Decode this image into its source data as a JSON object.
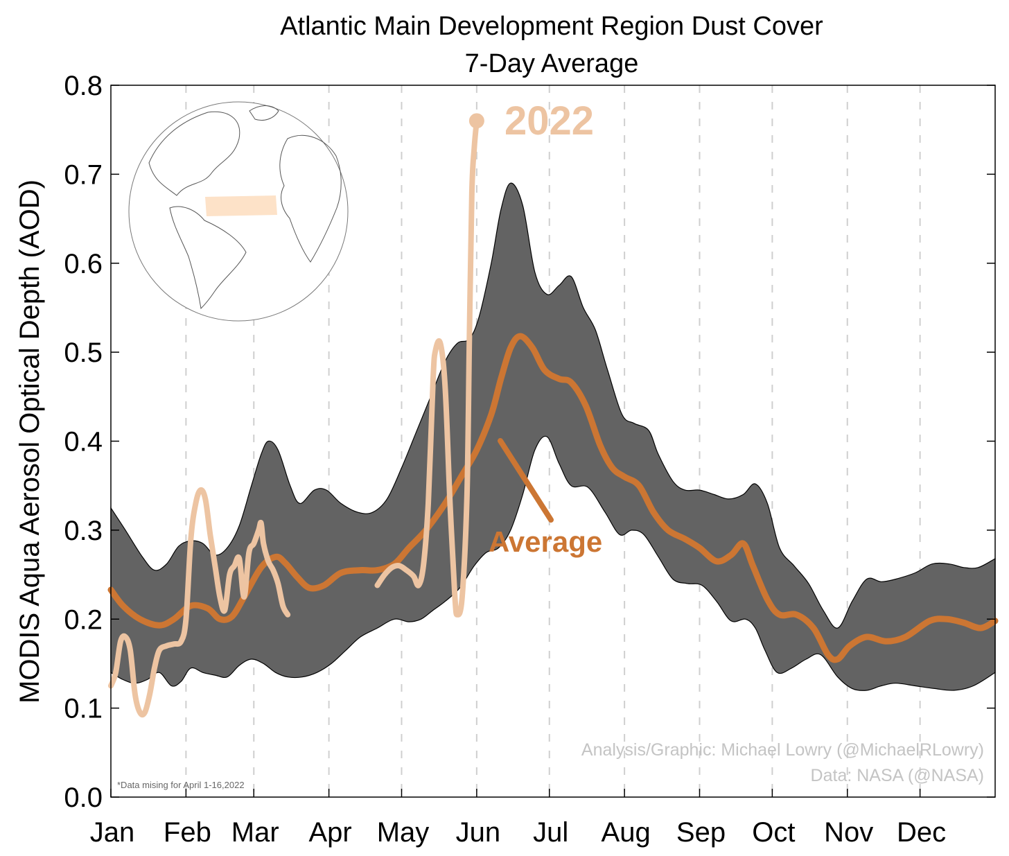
{
  "chart_data": {
    "type": "line",
    "title": "Atlantic Main Development Region Dust Cover",
    "subtitle": "7-Day Average",
    "ylabel": "MODIS Aqua Aerosol Optical Depth (AOD)",
    "xlabel": "",
    "ylim": [
      0,
      0.8
    ],
    "xlim": [
      0,
      365
    ],
    "yticks": [
      "0.0",
      "0.1",
      "0.2",
      "0.3",
      "0.4",
      "0.5",
      "0.6",
      "0.7",
      "0.8"
    ],
    "months": [
      {
        "label": "Jan",
        "day": 0
      },
      {
        "label": "Feb",
        "day": 31
      },
      {
        "label": "Mar",
        "day": 59
      },
      {
        "label": "Apr",
        "day": 90
      },
      {
        "label": "May",
        "day": 120
      },
      {
        "label": "Jun",
        "day": 151
      },
      {
        "label": "Jul",
        "day": 181
      },
      {
        "label": "Aug",
        "day": 212
      },
      {
        "label": "Sep",
        "day": 243
      },
      {
        "label": "Oct",
        "day": 273
      },
      {
        "label": "Nov",
        "day": 304
      },
      {
        "label": "Dec",
        "day": 334
      }
    ],
    "grid": "vertical dashed at month starts",
    "series": [
      {
        "name": "Average",
        "color": "#cc7633",
        "points": [
          [
            0,
            0.233
          ],
          [
            5,
            0.215
          ],
          [
            12,
            0.2
          ],
          [
            20,
            0.193
          ],
          [
            26,
            0.2
          ],
          [
            33,
            0.215
          ],
          [
            40,
            0.212
          ],
          [
            45,
            0.2
          ],
          [
            50,
            0.203
          ],
          [
            55,
            0.225
          ],
          [
            62,
            0.258
          ],
          [
            68,
            0.27
          ],
          [
            72,
            0.263
          ],
          [
            77,
            0.247
          ],
          [
            82,
            0.235
          ],
          [
            88,
            0.238
          ],
          [
            95,
            0.252
          ],
          [
            103,
            0.255
          ],
          [
            110,
            0.255
          ],
          [
            117,
            0.262
          ],
          [
            123,
            0.28
          ],
          [
            130,
            0.3
          ],
          [
            138,
            0.33
          ],
          [
            145,
            0.362
          ],
          [
            151,
            0.39
          ],
          [
            157,
            0.43
          ],
          [
            161,
            0.47
          ],
          [
            165,
            0.505
          ],
          [
            169,
            0.518
          ],
          [
            174,
            0.505
          ],
          [
            179,
            0.48
          ],
          [
            185,
            0.47
          ],
          [
            190,
            0.466
          ],
          [
            196,
            0.44
          ],
          [
            202,
            0.395
          ],
          [
            207,
            0.37
          ],
          [
            212,
            0.36
          ],
          [
            218,
            0.35
          ],
          [
            224,
            0.32
          ],
          [
            230,
            0.3
          ],
          [
            237,
            0.29
          ],
          [
            243,
            0.28
          ],
          [
            250,
            0.265
          ],
          [
            256,
            0.272
          ],
          [
            261,
            0.285
          ],
          [
            265,
            0.26
          ],
          [
            271,
            0.222
          ],
          [
            276,
            0.205
          ],
          [
            283,
            0.205
          ],
          [
            290,
            0.19
          ],
          [
            296,
            0.16
          ],
          [
            300,
            0.155
          ],
          [
            305,
            0.17
          ],
          [
            312,
            0.18
          ],
          [
            320,
            0.175
          ],
          [
            328,
            0.18
          ],
          [
            338,
            0.198
          ],
          [
            345,
            0.2
          ],
          [
            352,
            0.196
          ],
          [
            359,
            0.19
          ],
          [
            365,
            0.198
          ]
        ]
      },
      {
        "name": "2022",
        "color": "#edc4a2",
        "segments": [
          [
            [
              0,
              0.125
            ],
            [
              2,
              0.14
            ],
            [
              4,
              0.175
            ],
            [
              6,
              0.18
            ],
            [
              8,
              0.165
            ],
            [
              10,
              0.115
            ],
            [
              12,
              0.095
            ],
            [
              14,
              0.095
            ],
            [
              16,
              0.115
            ],
            [
              18,
              0.145
            ],
            [
              20,
              0.165
            ],
            [
              23,
              0.17
            ],
            [
              26,
              0.172
            ],
            [
              29,
              0.175
            ],
            [
              31,
              0.2
            ],
            [
              33,
              0.29
            ],
            [
              35,
              0.33
            ],
            [
              37,
              0.345
            ],
            [
              39,
              0.335
            ],
            [
              41,
              0.295
            ],
            [
              43,
              0.26
            ],
            [
              45,
              0.225
            ],
            [
              47,
              0.21
            ],
            [
              49,
              0.25
            ],
            [
              51,
              0.26
            ],
            [
              53,
              0.268
            ],
            [
              55,
              0.225
            ],
            [
              57,
              0.275
            ],
            [
              59,
              0.285
            ],
            [
              61,
              0.3
            ],
            [
              62,
              0.308
            ],
            [
              63,
              0.285
            ],
            [
              65,
              0.265
            ],
            [
              67,
              0.255
            ],
            [
              69,
              0.24
            ],
            [
              71,
              0.215
            ],
            [
              73,
              0.205
            ]
          ],
          [
            [
              110,
              0.238
            ],
            [
              113,
              0.25
            ],
            [
              116,
              0.258
            ],
            [
              119,
              0.26
            ],
            [
              122,
              0.255
            ],
            [
              125,
              0.248
            ],
            [
              127,
              0.238
            ],
            [
              129,
              0.26
            ],
            [
              131,
              0.33
            ],
            [
              133,
              0.47
            ],
            [
              134,
              0.502
            ],
            [
              136,
              0.51
            ],
            [
              138,
              0.46
            ],
            [
              140,
              0.33
            ],
            [
              142,
              0.225
            ],
            [
              143,
              0.205
            ],
            [
              145,
              0.225
            ],
            [
              147,
              0.34
            ],
            [
              148,
              0.52
            ],
            [
              149,
              0.68
            ],
            [
              150,
              0.73
            ],
            [
              151,
              0.76
            ]
          ]
        ]
      }
    ],
    "band": {
      "name": "range",
      "color": "#636363",
      "upper": [
        [
          0,
          0.325
        ],
        [
          6,
          0.3
        ],
        [
          13,
          0.27
        ],
        [
          18,
          0.255
        ],
        [
          23,
          0.262
        ],
        [
          28,
          0.282
        ],
        [
          33,
          0.288
        ],
        [
          38,
          0.285
        ],
        [
          43,
          0.272
        ],
        [
          48,
          0.28
        ],
        [
          53,
          0.305
        ],
        [
          58,
          0.35
        ],
        [
          62,
          0.385
        ],
        [
          65,
          0.4
        ],
        [
          69,
          0.39
        ],
        [
          74,
          0.35
        ],
        [
          78,
          0.33
        ],
        [
          84,
          0.345
        ],
        [
          89,
          0.345
        ],
        [
          95,
          0.33
        ],
        [
          102,
          0.32
        ],
        [
          108,
          0.32
        ],
        [
          114,
          0.335
        ],
        [
          120,
          0.37
        ],
        [
          126,
          0.41
        ],
        [
          132,
          0.45
        ],
        [
          138,
          0.49
        ],
        [
          143,
          0.51
        ],
        [
          148,
          0.515
        ],
        [
          152,
          0.54
        ],
        [
          157,
          0.6
        ],
        [
          161,
          0.66
        ],
        [
          165,
          0.69
        ],
        [
          170,
          0.665
        ],
        [
          175,
          0.59
        ],
        [
          180,
          0.565
        ],
        [
          185,
          0.575
        ],
        [
          190,
          0.585
        ],
        [
          195,
          0.55
        ],
        [
          200,
          0.525
        ],
        [
          205,
          0.48
        ],
        [
          211,
          0.43
        ],
        [
          216,
          0.42
        ],
        [
          222,
          0.412
        ],
        [
          226,
          0.385
        ],
        [
          232,
          0.355
        ],
        [
          237,
          0.345
        ],
        [
          243,
          0.345
        ],
        [
          249,
          0.34
        ],
        [
          255,
          0.335
        ],
        [
          261,
          0.34
        ],
        [
          266,
          0.352
        ],
        [
          271,
          0.33
        ],
        [
          276,
          0.28
        ],
        [
          282,
          0.26
        ],
        [
          288,
          0.24
        ],
        [
          294,
          0.21
        ],
        [
          300,
          0.19
        ],
        [
          306,
          0.22
        ],
        [
          312,
          0.245
        ],
        [
          318,
          0.242
        ],
        [
          324,
          0.245
        ],
        [
          332,
          0.252
        ],
        [
          339,
          0.262
        ],
        [
          346,
          0.262
        ],
        [
          352,
          0.258
        ],
        [
          358,
          0.258
        ],
        [
          365,
          0.268
        ]
      ],
      "lower": [
        [
          0,
          0.14
        ],
        [
          5,
          0.132
        ],
        [
          10,
          0.128
        ],
        [
          15,
          0.132
        ],
        [
          20,
          0.14
        ],
        [
          25,
          0.125
        ],
        [
          29,
          0.13
        ],
        [
          33,
          0.145
        ],
        [
          38,
          0.14
        ],
        [
          43,
          0.137
        ],
        [
          48,
          0.135
        ],
        [
          53,
          0.148
        ],
        [
          58,
          0.155
        ],
        [
          63,
          0.15
        ],
        [
          68,
          0.14
        ],
        [
          73,
          0.135
        ],
        [
          79,
          0.135
        ],
        [
          85,
          0.14
        ],
        [
          91,
          0.15
        ],
        [
          97,
          0.165
        ],
        [
          103,
          0.18
        ],
        [
          110,
          0.19
        ],
        [
          117,
          0.2
        ],
        [
          123,
          0.197
        ],
        [
          128,
          0.2
        ],
        [
          133,
          0.21
        ],
        [
          138,
          0.22
        ],
        [
          144,
          0.235
        ],
        [
          150,
          0.26
        ],
        [
          155,
          0.275
        ],
        [
          160,
          0.28
        ],
        [
          165,
          0.3
        ],
        [
          170,
          0.34
        ],
        [
          175,
          0.39
        ],
        [
          180,
          0.405
        ],
        [
          185,
          0.375
        ],
        [
          190,
          0.35
        ],
        [
          197,
          0.348
        ],
        [
          204,
          0.32
        ],
        [
          210,
          0.295
        ],
        [
          215,
          0.3
        ],
        [
          220,
          0.295
        ],
        [
          226,
          0.27
        ],
        [
          232,
          0.245
        ],
        [
          238,
          0.24
        ],
        [
          244,
          0.238
        ],
        [
          250,
          0.22
        ],
        [
          256,
          0.198
        ],
        [
          262,
          0.2
        ],
        [
          266,
          0.19
        ],
        [
          270,
          0.165
        ],
        [
          275,
          0.14
        ],
        [
          281,
          0.145
        ],
        [
          287,
          0.155
        ],
        [
          293,
          0.16
        ],
        [
          300,
          0.135
        ],
        [
          306,
          0.122
        ],
        [
          312,
          0.12
        ],
        [
          318,
          0.125
        ],
        [
          324,
          0.128
        ],
        [
          332,
          0.125
        ],
        [
          340,
          0.122
        ],
        [
          348,
          0.12
        ],
        [
          356,
          0.125
        ],
        [
          365,
          0.14
        ]
      ]
    },
    "annotations": {
      "label_2022": "2022",
      "label_average": "Average",
      "credit_line1": "Analysis/Graphic: Michael Lowry (@MichaelRLowry)",
      "credit_line2": "Data: NASA (@NASA)",
      "note": "*Data mising for April 1-16,2022"
    },
    "inset": {
      "icon": "globe-icon",
      "highlight_color": "#fde2c8"
    }
  }
}
